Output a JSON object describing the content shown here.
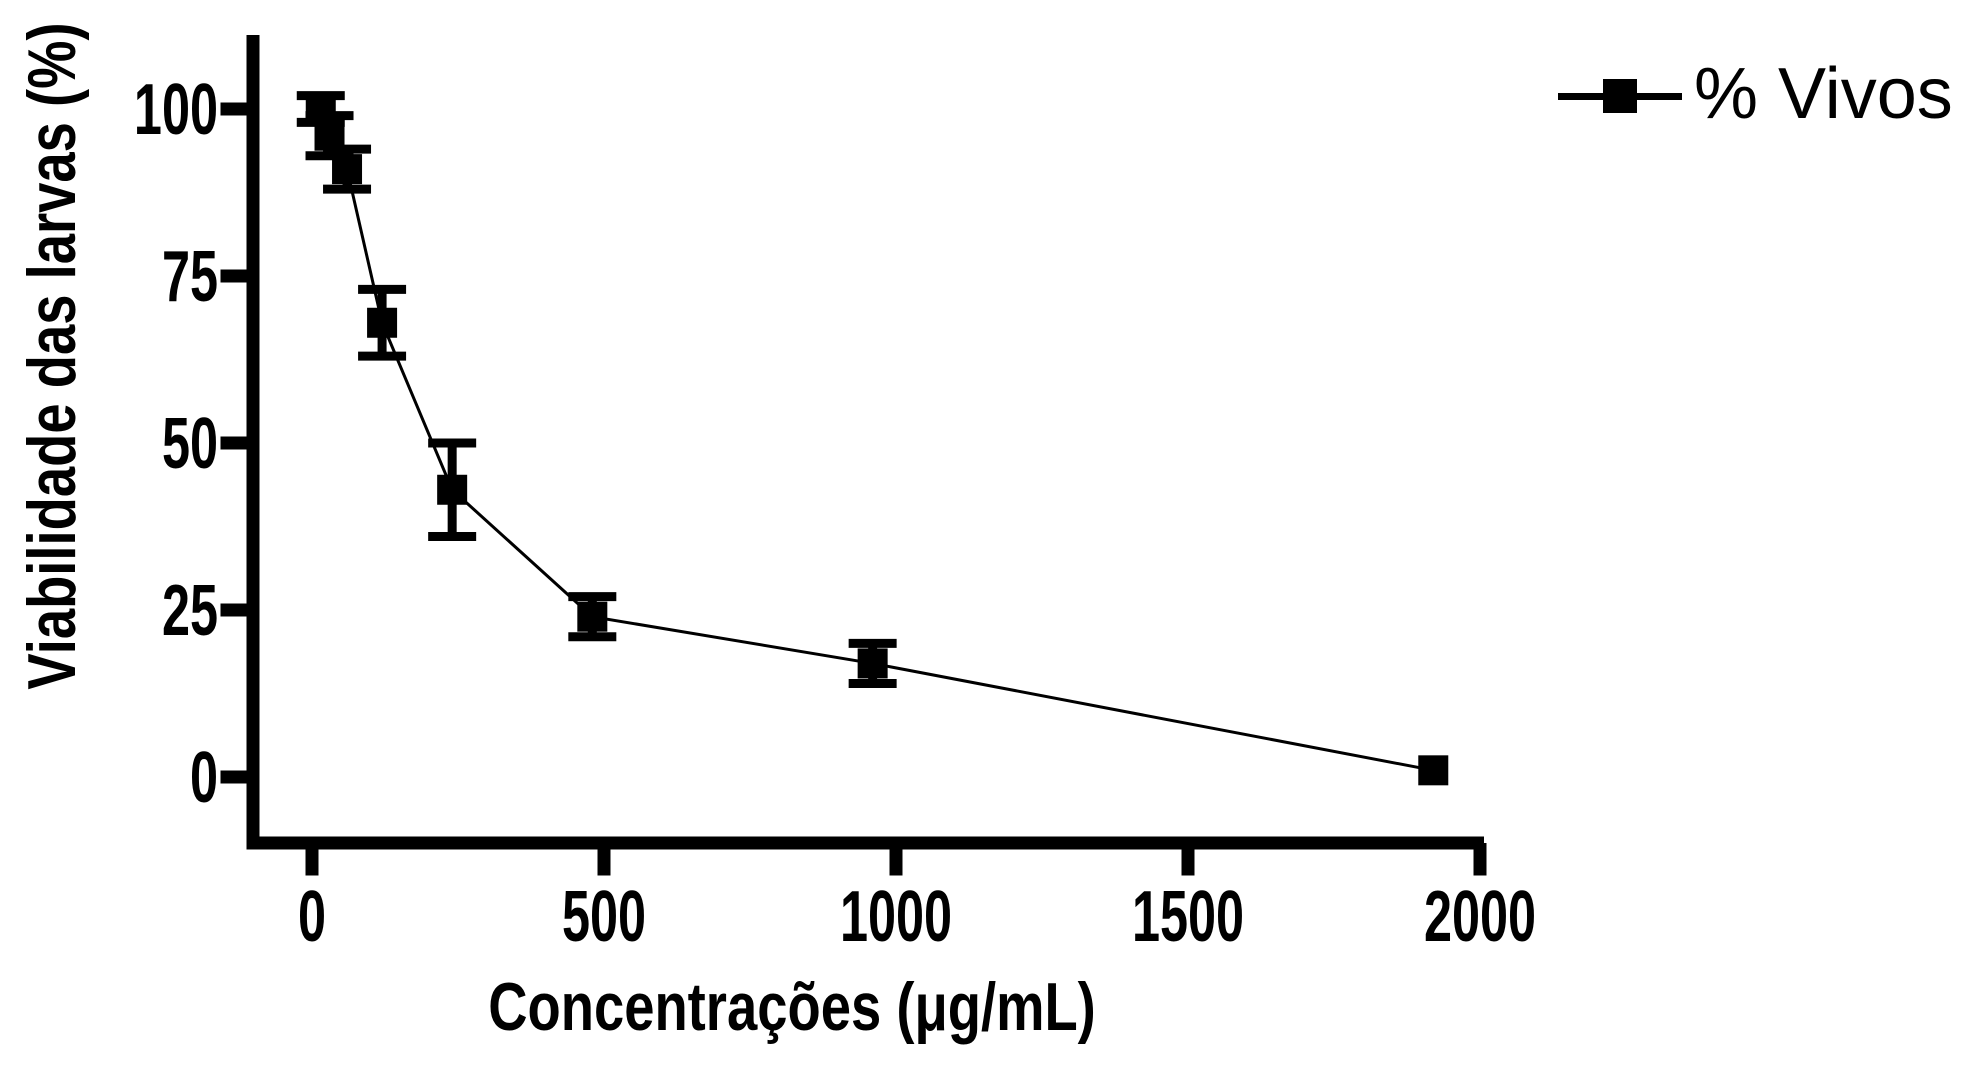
{
  "figure": {
    "background": "#ffffff",
    "ink": "#000000"
  },
  "chart_data": {
    "type": "line",
    "title": "",
    "xlabel": "Concentrações (μg/mL)",
    "ylabel": "Viabilidade das larvas (%)",
    "legend": [
      {
        "label": "% Vivos",
        "marker": "filled-square",
        "color": "#000000"
      }
    ],
    "legend_position": "top-right",
    "grid": false,
    "error_bars": true,
    "x_ticks": [
      0,
      500,
      1000,
      1500,
      2000
    ],
    "y_ticks": [
      0,
      25,
      50,
      75,
      100
    ],
    "xlim": [
      -100,
      2010
    ],
    "ylim": [
      -10,
      111
    ],
    "series": [
      {
        "name": "% Vivos",
        "color": "#000000",
        "marker": "filled-square",
        "points": [
          {
            "x": 15,
            "y": 100,
            "err": 2
          },
          {
            "x": 30,
            "y": 96,
            "err": 3
          },
          {
            "x": 60,
            "y": 91,
            "err": 3
          },
          {
            "x": 120,
            "y": 68,
            "err": 5
          },
          {
            "x": 240,
            "y": 43,
            "err": 7
          },
          {
            "x": 480,
            "y": 24,
            "err": 3
          },
          {
            "x": 960,
            "y": 17,
            "err": 3
          },
          {
            "x": 1920,
            "y": 1,
            "err": 0
          }
        ]
      }
    ]
  }
}
